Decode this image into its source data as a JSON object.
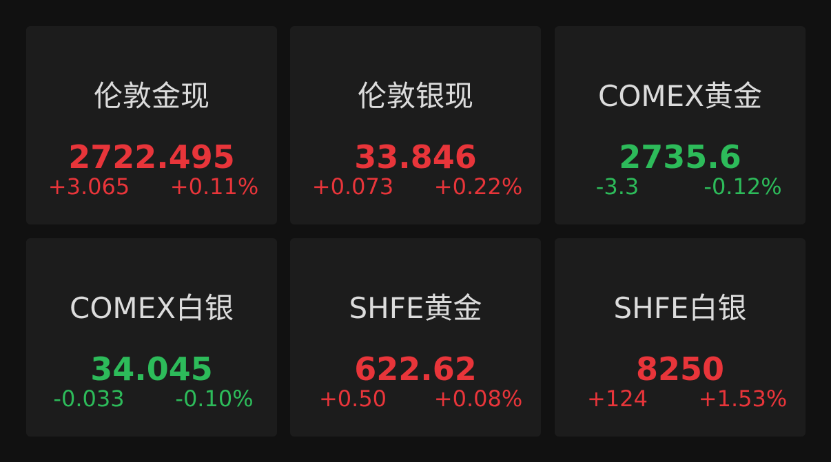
{
  "colors": {
    "up": "#e8353a",
    "down": "#2dbb5a",
    "background": "#111111",
    "card": "#1c1c1c"
  },
  "quotes": [
    {
      "name": "伦敦金现",
      "price": "2722.495",
      "change": "+3.065",
      "percent": "+0.11%",
      "direction": "up"
    },
    {
      "name": "伦敦银现",
      "price": "33.846",
      "change": "+0.073",
      "percent": "+0.22%",
      "direction": "up"
    },
    {
      "name": "COMEX黄金",
      "price": "2735.6",
      "change": "-3.3",
      "percent": "-0.12%",
      "direction": "down"
    },
    {
      "name": "COMEX白银",
      "price": "34.045",
      "change": "-0.033",
      "percent": "-0.10%",
      "direction": "down"
    },
    {
      "name": "SHFE黄金",
      "price": "622.62",
      "change": "+0.50",
      "percent": "+0.08%",
      "direction": "up"
    },
    {
      "name": "SHFE白银",
      "price": "8250",
      "change": "+124",
      "percent": "+1.53%",
      "direction": "up"
    }
  ]
}
